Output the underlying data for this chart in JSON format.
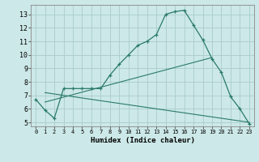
{
  "xlabel": "Humidex (Indice chaleur)",
  "bg_color": "#cce8e8",
  "grid_color": "#aacccc",
  "line_color": "#2a7a6a",
  "xlim": [
    -0.5,
    23.5
  ],
  "ylim": [
    4.7,
    13.7
  ],
  "yticks": [
    5,
    6,
    7,
    8,
    9,
    10,
    11,
    12,
    13
  ],
  "xticks": [
    0,
    1,
    2,
    3,
    4,
    5,
    6,
    7,
    8,
    9,
    10,
    11,
    12,
    13,
    14,
    15,
    16,
    17,
    18,
    19,
    20,
    21,
    22,
    23
  ],
  "line1_x": [
    0,
    1,
    2,
    3,
    4,
    5,
    6,
    7,
    8,
    9,
    10,
    11,
    12,
    13,
    14,
    15,
    16,
    17,
    18,
    19,
    20,
    21,
    22,
    23
  ],
  "line1_y": [
    6.7,
    5.9,
    5.3,
    7.5,
    7.5,
    7.5,
    7.5,
    7.5,
    8.5,
    9.3,
    10.0,
    10.7,
    11.0,
    11.5,
    13.0,
    13.2,
    13.3,
    12.2,
    11.1,
    9.7,
    8.7,
    6.9,
    6.0,
    4.9
  ],
  "line2_x": [
    1,
    19
  ],
  "line2_y": [
    6.5,
    9.8
  ],
  "line3_x": [
    1,
    23
  ],
  "line3_y": [
    7.2,
    5.0
  ]
}
